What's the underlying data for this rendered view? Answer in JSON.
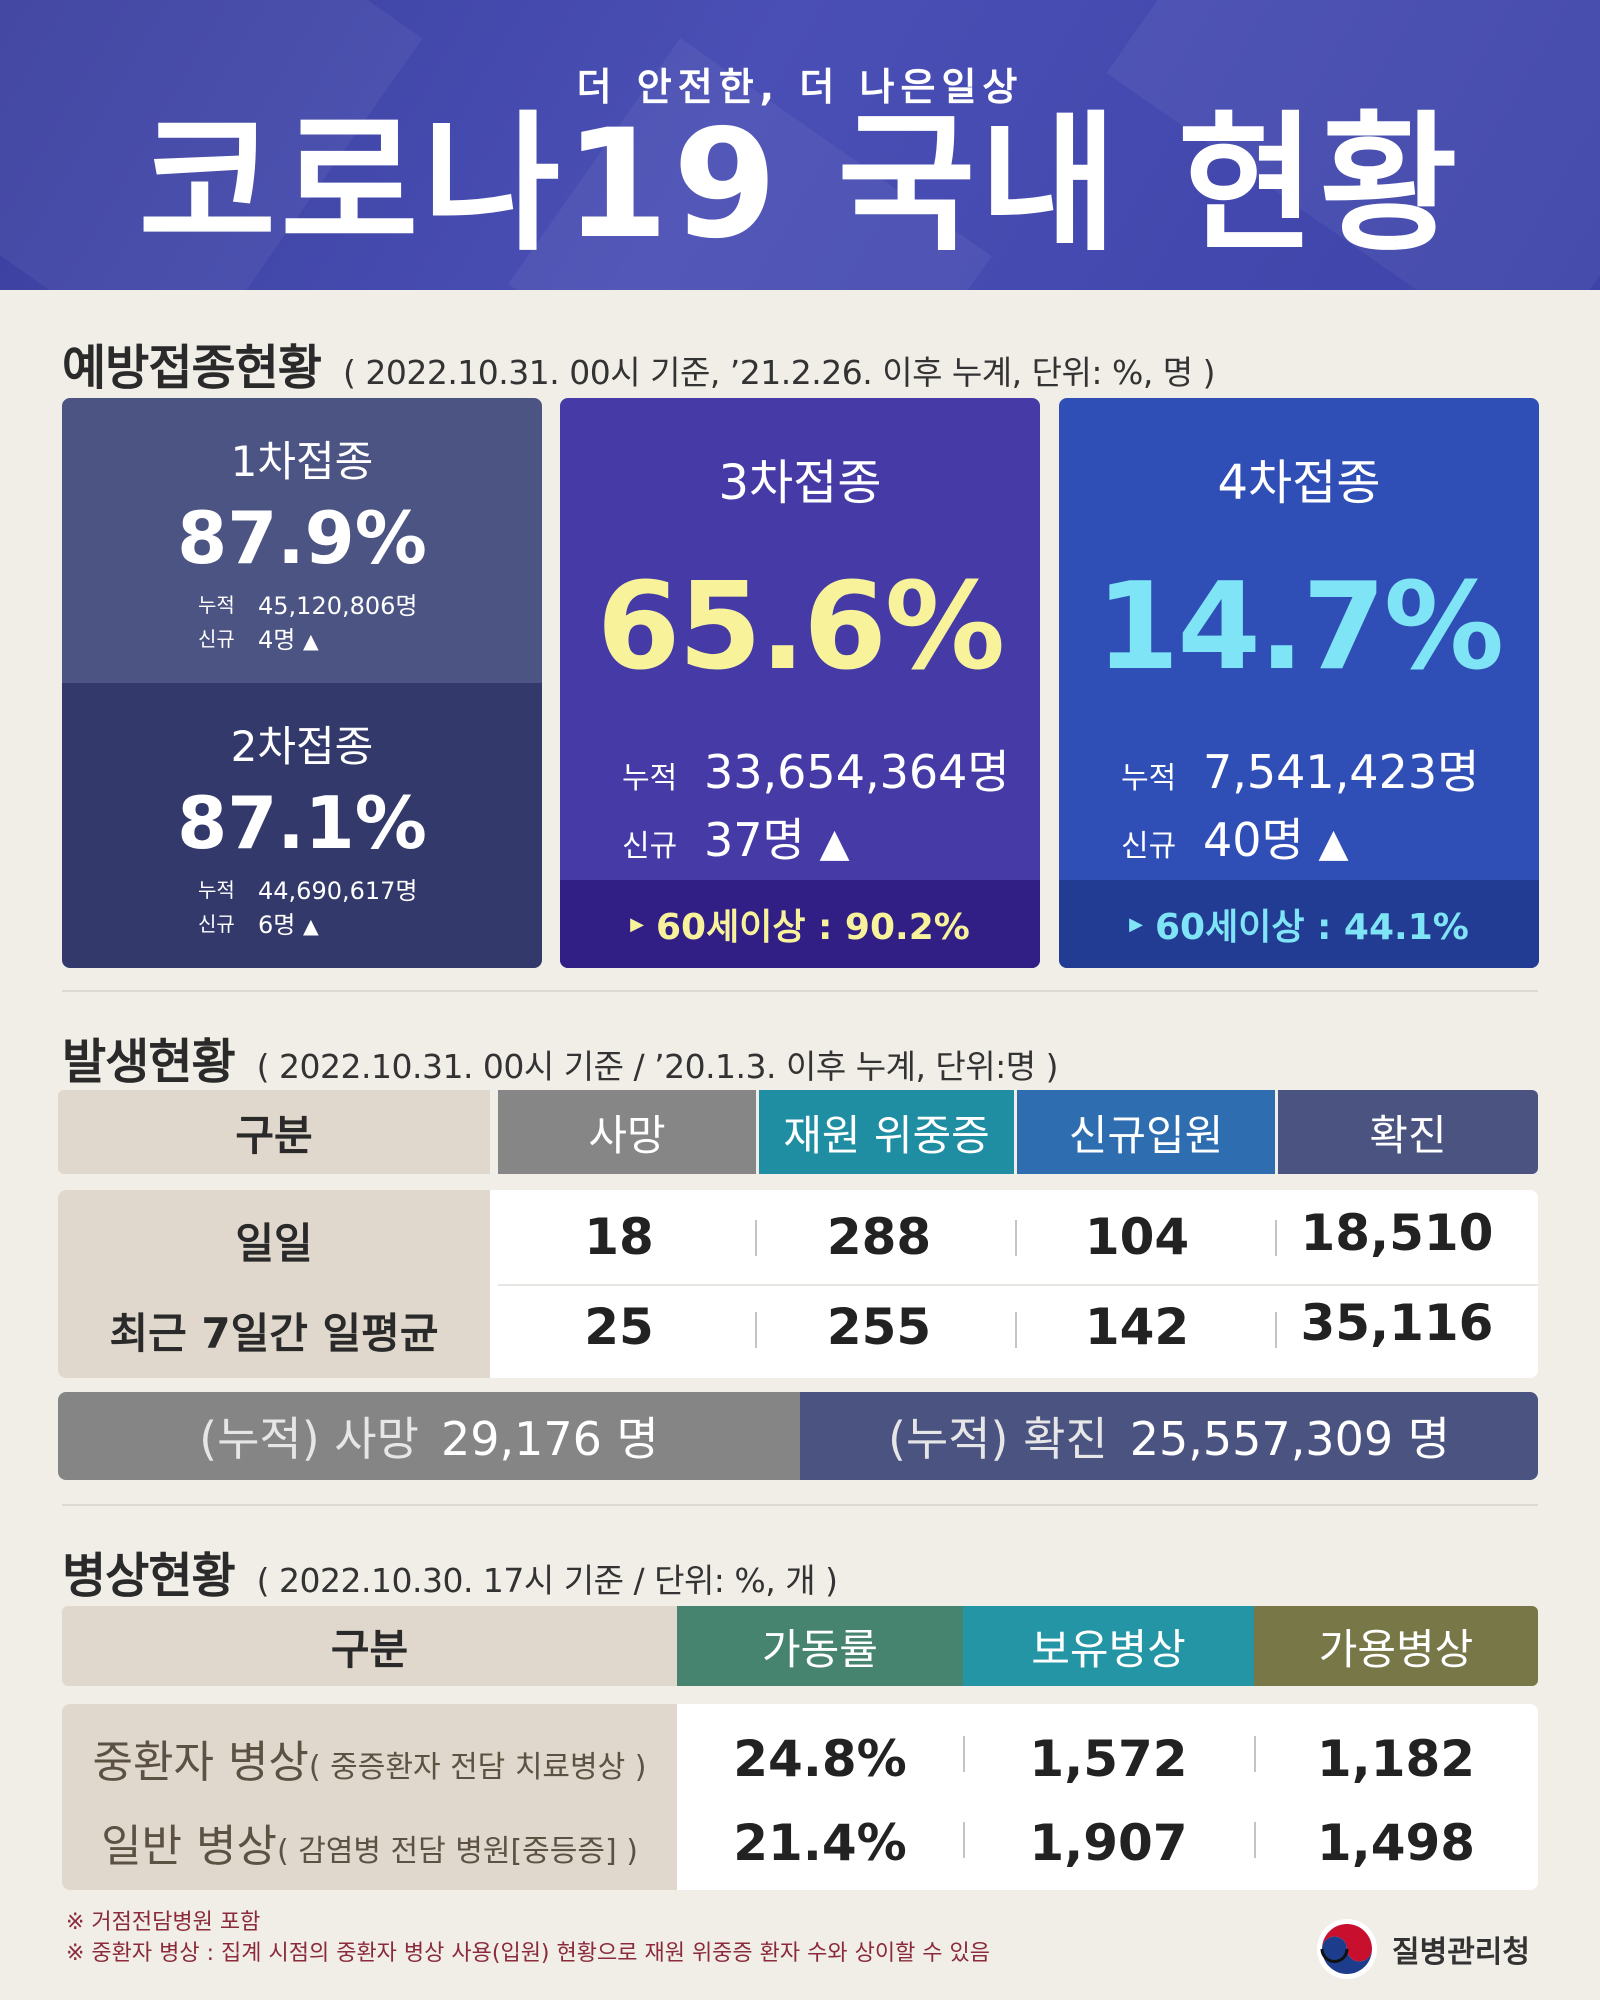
{
  "header": {
    "subtitle": "더 안전한, 더 나은일상",
    "title": "코로나19 국내 현황"
  },
  "vaccination": {
    "heading": "예방접종현황",
    "note": "( 2022.10.31. 00시 기준, ’21.2.26. 이후 누계, 단위: %, 명 )",
    "dose1": {
      "label": "1차접종",
      "pct": "87.9%",
      "cum_key": "누적",
      "cum": "45,120,806명",
      "new_key": "신규",
      "new": "4명",
      "arrow": "▲"
    },
    "dose2": {
      "label": "2차접종",
      "pct": "87.1%",
      "cum_key": "누적",
      "cum": "44,690,617명",
      "new_key": "신규",
      "new": "6명",
      "arrow": "▲"
    },
    "dose3": {
      "label": "3차접종",
      "pct": "65.6%",
      "cum_key": "누적",
      "cum": "33,654,364명",
      "new_key": "신규",
      "new": "37명",
      "arrow": "▲",
      "elder": "60세이상 : 90.2%",
      "elder_marker": "▶"
    },
    "dose4": {
      "label": "4차접종",
      "pct": "14.7%",
      "cum_key": "누적",
      "cum": "7,541,423명",
      "new_key": "신규",
      "new": "40명",
      "arrow": "▲",
      "elder": "60세이상 : 44.1%",
      "elder_marker": "▶"
    }
  },
  "occurrence": {
    "heading": "발생현황",
    "note": "( 2022.10.31. 00시 기준 / ’20.1.3. 이후 누계, 단위:명 )",
    "columns": [
      "구분",
      "사망",
      "재원 위중증",
      "신규입원",
      "확진"
    ],
    "rows": [
      {
        "label": "일일",
        "values": [
          "18",
          "288",
          "104",
          "18,510"
        ]
      },
      {
        "label": "최근 7일간 일평균",
        "values": [
          "25",
          "255",
          "142",
          "35,116"
        ]
      }
    ],
    "cum_death_label": "(누적) 사망",
    "cum_death_value": "29,176 명",
    "cum_conf_label": "(누적) 확진",
    "cum_conf_value": "25,557,309 명"
  },
  "beds": {
    "heading": "병상현황",
    "note": "( 2022.10.30. 17시 기준 / 단위: %, 개 )",
    "columns": [
      "구분",
      "가동률",
      "보유병상",
      "가용병상"
    ],
    "rows": [
      {
        "label": "중환자 병상",
        "sub": "( 중증환자 전담 치료병상 )",
        "values": [
          "24.8%",
          "1,572",
          "1,182"
        ]
      },
      {
        "label": "일반 병상",
        "sub": "( 감염병 전담 병원[중등증] )",
        "values": [
          "21.4%",
          "1,907",
          "1,498"
        ]
      }
    ]
  },
  "footnotes": [
    "※ 거점전담병원 포함",
    "※ 중환자 병상 : 집계 시점의 중환자 병상 사용(입원) 현황으로 재원 위중증 환자 수와 상이할 수 있음"
  ],
  "logo": {
    "name": "질병관리청",
    "icon": "taegeuk-icon"
  }
}
